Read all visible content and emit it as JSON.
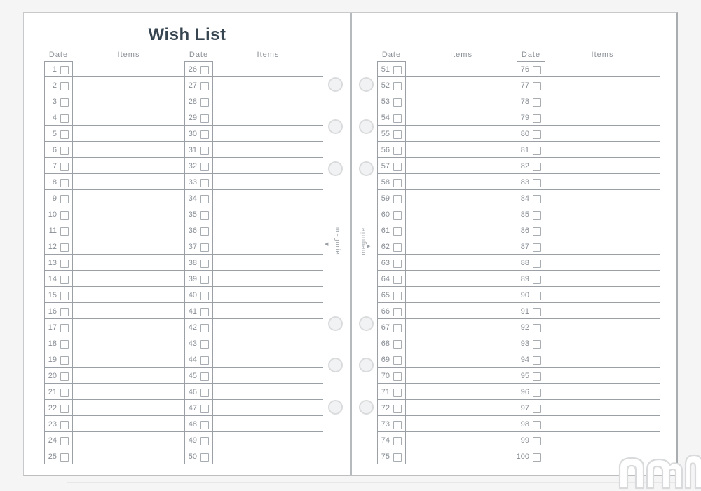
{
  "page_title": "Wish List",
  "left_page": {
    "title": "Wish List",
    "groups": [
      {
        "date_header": "Date",
        "items_header": "Items",
        "numbers": [
          1,
          2,
          3,
          4,
          5,
          6,
          7,
          8,
          9,
          10,
          11,
          12,
          13,
          14,
          15,
          16,
          17,
          18,
          19,
          20,
          21,
          22,
          23,
          24,
          25
        ]
      },
      {
        "date_header": "Date",
        "items_header": "Items",
        "numbers": [
          26,
          27,
          28,
          29,
          30,
          31,
          32,
          33,
          34,
          35,
          36,
          37,
          38,
          39,
          40,
          41,
          42,
          43,
          44,
          45,
          46,
          47,
          48,
          49,
          50
        ]
      }
    ]
  },
  "right_page": {
    "groups": [
      {
        "date_header": "Date",
        "items_header": "Items",
        "numbers": [
          51,
          52,
          53,
          54,
          55,
          56,
          57,
          58,
          59,
          60,
          61,
          62,
          63,
          64,
          65,
          66,
          67,
          68,
          69,
          70,
          71,
          72,
          73,
          74,
          75
        ]
      },
      {
        "date_header": "Date",
        "items_header": "Items",
        "numbers": [
          76,
          77,
          78,
          79,
          80,
          81,
          82,
          83,
          84,
          85,
          86,
          87,
          88,
          89,
          90,
          91,
          92,
          93,
          94,
          95,
          96,
          97,
          98,
          99,
          100
        ]
      }
    ]
  },
  "rows_per_column": 25,
  "checkbox_checked": false,
  "spine": {
    "left_label": "megurie",
    "left_arrow": "◀",
    "right_label": "megurie",
    "right_arrow": "▶"
  },
  "icons": {
    "ring_hole": "binder-ring-hole-icon",
    "watermark": "nn-outline-watermark"
  },
  "colors": {
    "title": "#36454f",
    "grid_line": "#9aa0a5",
    "muted_text": "#878d94",
    "checkbox_border": "#a8adb2",
    "ring_outline": "#d9dbdc",
    "page_bg": "#ffffff",
    "backdrop": "#f5f5f6",
    "watermark": "#d9dadb"
  }
}
